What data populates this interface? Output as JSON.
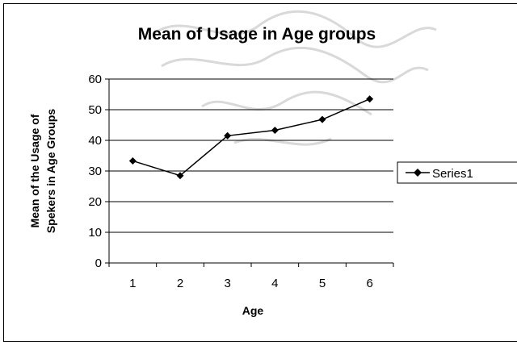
{
  "chart_data": {
    "type": "line",
    "title": "Mean of Usage in Age groups",
    "xlabel": "Age",
    "ylabel_lines": [
      "Mean of the Usage of",
      "Spekers in Age Groups"
    ],
    "categories": [
      "1",
      "2",
      "3",
      "4",
      "5",
      "6"
    ],
    "series": [
      {
        "name": "Series1",
        "values": [
          33.3,
          28.5,
          41.5,
          43.3,
          46.8,
          53.5
        ],
        "color": "#000000",
        "marker": "diamond"
      }
    ],
    "ylim": [
      0,
      60
    ],
    "yticks": [
      0,
      10,
      20,
      30,
      40,
      50,
      60
    ],
    "grid": true,
    "legend_position": "right"
  }
}
